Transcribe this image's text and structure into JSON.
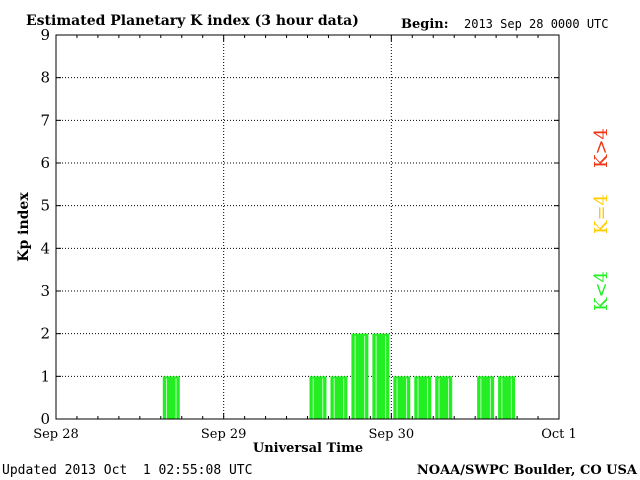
{
  "chart_data": {
    "type": "bar",
    "title": "Estimated Planetary K index (3 hour data)",
    "begin_label": "Begin:",
    "begin_value": "2013 Sep 28 0000 UTC",
    "xlabel": "Universal Time",
    "ylabel": "Kp index",
    "x_range_hours": [
      0,
      72
    ],
    "ylim": [
      0,
      9
    ],
    "y_ticks": [
      0,
      1,
      2,
      3,
      4,
      5,
      6,
      7,
      8,
      9
    ],
    "x_ticks": [
      {
        "hour": 0,
        "label": "Sep 28"
      },
      {
        "hour": 24,
        "label": "Sep 29"
      },
      {
        "hour": 48,
        "label": "Sep 30"
      },
      {
        "hour": 72,
        "label": "Oct 1"
      }
    ],
    "grid": true,
    "bin_hours": 3,
    "bars": [
      {
        "start_hour": 15,
        "value": 1
      },
      {
        "start_hour": 36,
        "value": 1
      },
      {
        "start_hour": 39,
        "value": 1
      },
      {
        "start_hour": 42,
        "value": 2
      },
      {
        "start_hour": 45,
        "value": 2
      },
      {
        "start_hour": 48,
        "value": 1
      },
      {
        "start_hour": 51,
        "value": 1
      },
      {
        "start_hour": 54,
        "value": 1
      },
      {
        "start_hour": 60,
        "value": 1
      },
      {
        "start_hour": 63,
        "value": 1
      }
    ],
    "legend": [
      {
        "label": "K<4",
        "color": "#22ee22"
      },
      {
        "label": "K=4",
        "color": "#ffcc00"
      },
      {
        "label": "K>4",
        "color": "#ee3311"
      }
    ],
    "bar_color": "#22ee22"
  },
  "footer": {
    "updated": "Updated 2013 Oct  1 02:55:08 UTC",
    "source": "NOAA/SWPC Boulder, CO USA"
  }
}
